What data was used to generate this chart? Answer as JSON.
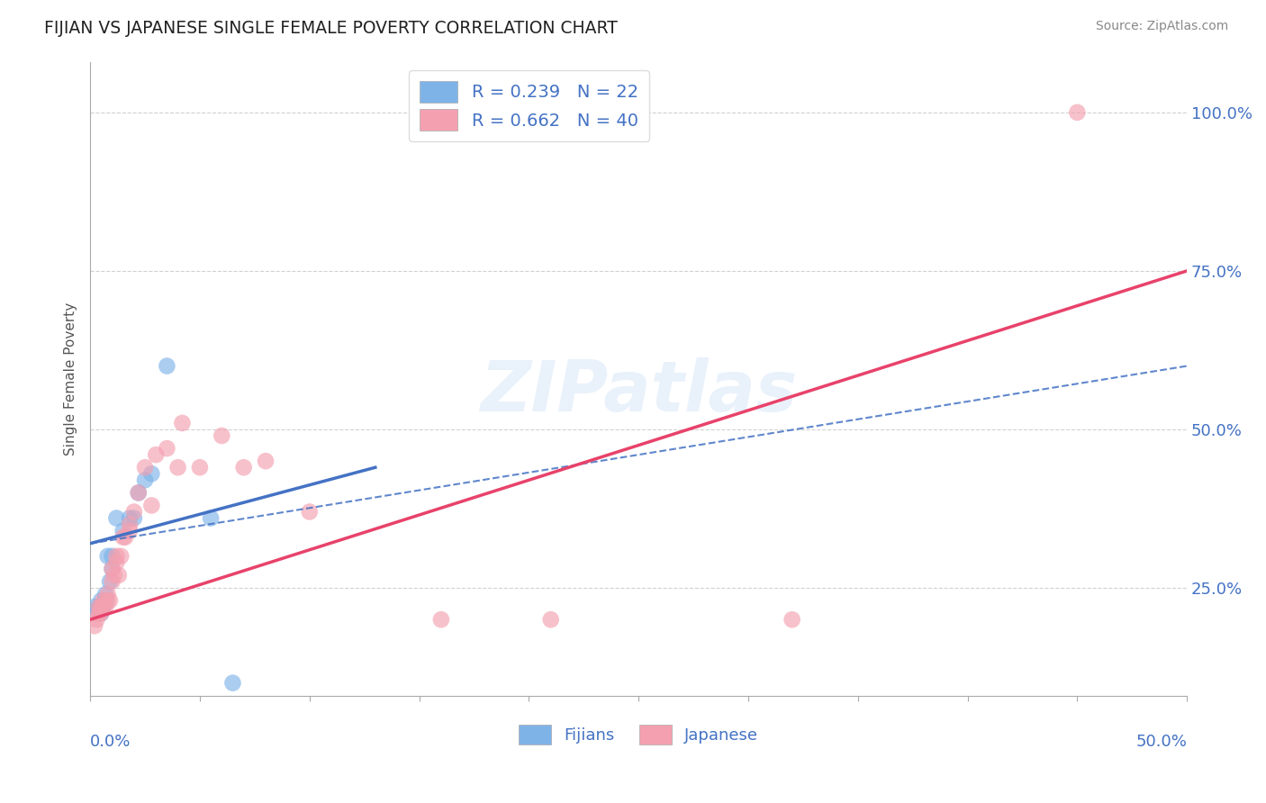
{
  "title": "FIJIAN VS JAPANESE SINGLE FEMALE POVERTY CORRELATION CHART",
  "source": "Source: ZipAtlas.com",
  "ylabel": "Single Female Poverty",
  "y_tick_labels": [
    "25.0%",
    "50.0%",
    "75.0%",
    "100.0%"
  ],
  "y_tick_values": [
    0.25,
    0.5,
    0.75,
    1.0
  ],
  "x_lim": [
    0.0,
    0.5
  ],
  "y_lim": [
    0.08,
    1.08
  ],
  "legend_fijian": "R = 0.239   N = 22",
  "legend_japanese": "R = 0.662   N = 40",
  "legend_label_fijian": "Fijians",
  "legend_label_japanese": "Japanese",
  "fijian_color": "#7eb3e8",
  "japanese_color": "#f4a0b0",
  "fijian_line_color": "#4472C4",
  "japanese_line_color": "#E8426A",
  "fijian_scatter": [
    [
      0.002,
      0.22
    ],
    [
      0.003,
      0.21
    ],
    [
      0.004,
      0.22
    ],
    [
      0.005,
      0.23
    ],
    [
      0.005,
      0.21
    ],
    [
      0.006,
      0.22
    ],
    [
      0.007,
      0.24
    ],
    [
      0.007,
      0.23
    ],
    [
      0.008,
      0.3
    ],
    [
      0.009,
      0.26
    ],
    [
      0.01,
      0.28
    ],
    [
      0.01,
      0.3
    ],
    [
      0.012,
      0.36
    ],
    [
      0.015,
      0.34
    ],
    [
      0.018,
      0.36
    ],
    [
      0.02,
      0.36
    ],
    [
      0.022,
      0.4
    ],
    [
      0.025,
      0.42
    ],
    [
      0.028,
      0.43
    ],
    [
      0.035,
      0.6
    ],
    [
      0.055,
      0.36
    ],
    [
      0.065,
      0.1
    ]
  ],
  "japanese_scatter": [
    [
      0.002,
      0.19
    ],
    [
      0.003,
      0.2
    ],
    [
      0.004,
      0.21
    ],
    [
      0.004,
      0.22
    ],
    [
      0.005,
      0.21
    ],
    [
      0.005,
      0.22
    ],
    [
      0.006,
      0.23
    ],
    [
      0.006,
      0.22
    ],
    [
      0.007,
      0.22
    ],
    [
      0.008,
      0.24
    ],
    [
      0.008,
      0.23
    ],
    [
      0.009,
      0.23
    ],
    [
      0.01,
      0.26
    ],
    [
      0.01,
      0.28
    ],
    [
      0.011,
      0.27
    ],
    [
      0.012,
      0.29
    ],
    [
      0.012,
      0.3
    ],
    [
      0.013,
      0.27
    ],
    [
      0.014,
      0.3
    ],
    [
      0.015,
      0.33
    ],
    [
      0.016,
      0.33
    ],
    [
      0.018,
      0.34
    ],
    [
      0.018,
      0.35
    ],
    [
      0.02,
      0.37
    ],
    [
      0.022,
      0.4
    ],
    [
      0.025,
      0.44
    ],
    [
      0.028,
      0.38
    ],
    [
      0.03,
      0.46
    ],
    [
      0.035,
      0.47
    ],
    [
      0.04,
      0.44
    ],
    [
      0.042,
      0.51
    ],
    [
      0.05,
      0.44
    ],
    [
      0.06,
      0.49
    ],
    [
      0.07,
      0.44
    ],
    [
      0.08,
      0.45
    ],
    [
      0.1,
      0.37
    ],
    [
      0.16,
      0.2
    ],
    [
      0.21,
      0.2
    ],
    [
      0.32,
      0.2
    ],
    [
      0.45,
      1.0
    ]
  ],
  "fijian_reg_line": [
    [
      0.0,
      0.32
    ],
    [
      0.13,
      0.44
    ]
  ],
  "fijian_dash_line": [
    [
      0.0,
      0.32
    ],
    [
      0.5,
      0.6
    ]
  ],
  "japanese_reg_line": [
    [
      0.0,
      0.2
    ],
    [
      0.5,
      0.75
    ]
  ],
  "watermark": "ZIPatlas",
  "background_color": "#ffffff",
  "grid_color": "#cccccc",
  "title_color": "#222222",
  "tick_label_color": "#4472C4"
}
